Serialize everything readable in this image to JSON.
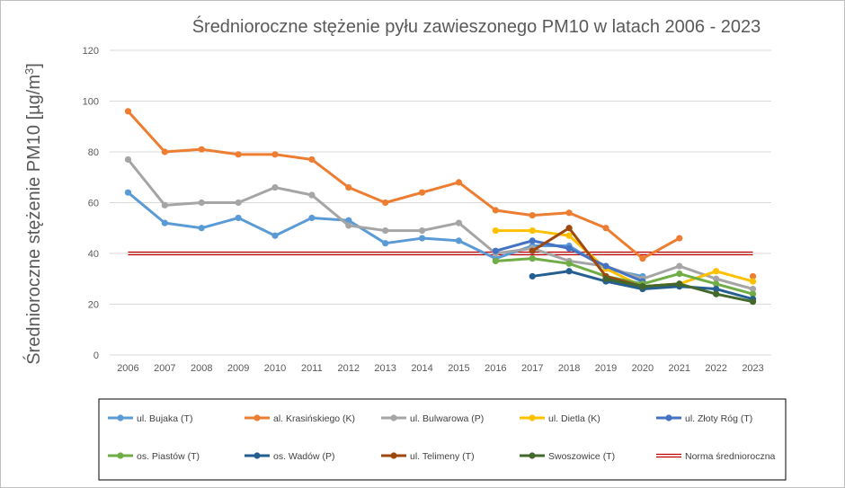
{
  "chart_data": {
    "type": "line",
    "title": "Średnioroczne stężenie pyłu zawieszonego PM10 w latach 2006 - 2023",
    "xlabel": "",
    "ylabel": "Średnioroczne stężenie PM10 [µg/m³]",
    "ylim": [
      0,
      120
    ],
    "yticks": [
      0,
      20,
      40,
      60,
      80,
      100,
      120
    ],
    "grid": true,
    "legend_position": "bottom",
    "categories": [
      "2006",
      "2007",
      "2008",
      "2009",
      "2010",
      "2011",
      "2012",
      "2013",
      "2014",
      "2015",
      "2016",
      "2017",
      "2018",
      "2019",
      "2020",
      "2021",
      "2022",
      "2023"
    ],
    "series": [
      {
        "name": "ul. Bujaka (T)",
        "color": "#5b9bd5",
        "values": [
          64,
          52,
          50,
          54,
          47,
          54,
          53,
          44,
          46,
          45,
          38,
          43,
          43,
          34,
          31,
          null,
          null,
          null
        ]
      },
      {
        "name": "al. Krasińskiego (K)",
        "color": "#ed7d31",
        "values": [
          96,
          80,
          81,
          79,
          79,
          77,
          66,
          60,
          64,
          68,
          57,
          55,
          56,
          50,
          38,
          46,
          null,
          31
        ]
      },
      {
        "name": "ul. Bulwarowa (P)",
        "color": "#a5a5a5",
        "values": [
          77,
          59,
          60,
          60,
          66,
          63,
          51,
          49,
          49,
          52,
          40,
          42,
          37,
          35,
          30,
          35,
          30,
          26
        ]
      },
      {
        "name": "ul. Dietla (K)",
        "color": "#ffc000",
        "values": [
          null,
          null,
          null,
          null,
          null,
          null,
          null,
          null,
          null,
          null,
          49,
          49,
          47,
          34,
          27,
          28,
          33,
          29
        ]
      },
      {
        "name": "ul. Złoty Róg (T)",
        "color": "#4472c4",
        "values": [
          null,
          null,
          null,
          null,
          null,
          null,
          null,
          null,
          null,
          null,
          41,
          45,
          42,
          35,
          29,
          null,
          null,
          null
        ]
      },
      {
        "name": "os. Piastów (T)",
        "color": "#70ad47",
        "values": [
          null,
          null,
          null,
          null,
          null,
          null,
          null,
          null,
          null,
          null,
          37,
          38,
          36,
          31,
          28,
          32,
          28,
          24
        ]
      },
      {
        "name": "os. Wadów (P)",
        "color": "#255e91",
        "values": [
          null,
          null,
          null,
          null,
          null,
          null,
          null,
          null,
          null,
          null,
          null,
          31,
          33,
          29,
          26,
          27,
          26,
          22
        ]
      },
      {
        "name": "ul. Telimeny (T)",
        "color": "#9e480e",
        "values": [
          null,
          null,
          null,
          null,
          null,
          null,
          null,
          null,
          null,
          null,
          null,
          41,
          50,
          31,
          27,
          28,
          null,
          null
        ]
      },
      {
        "name": "Swoszowice (T)",
        "color": "#43682b",
        "values": [
          null,
          null,
          null,
          null,
          null,
          null,
          null,
          null,
          null,
          null,
          null,
          null,
          null,
          30,
          27,
          28,
          24,
          21
        ]
      }
    ],
    "reference_line": {
      "name": "Norma średnioroczna",
      "value": 40,
      "color": "#c00000"
    }
  }
}
